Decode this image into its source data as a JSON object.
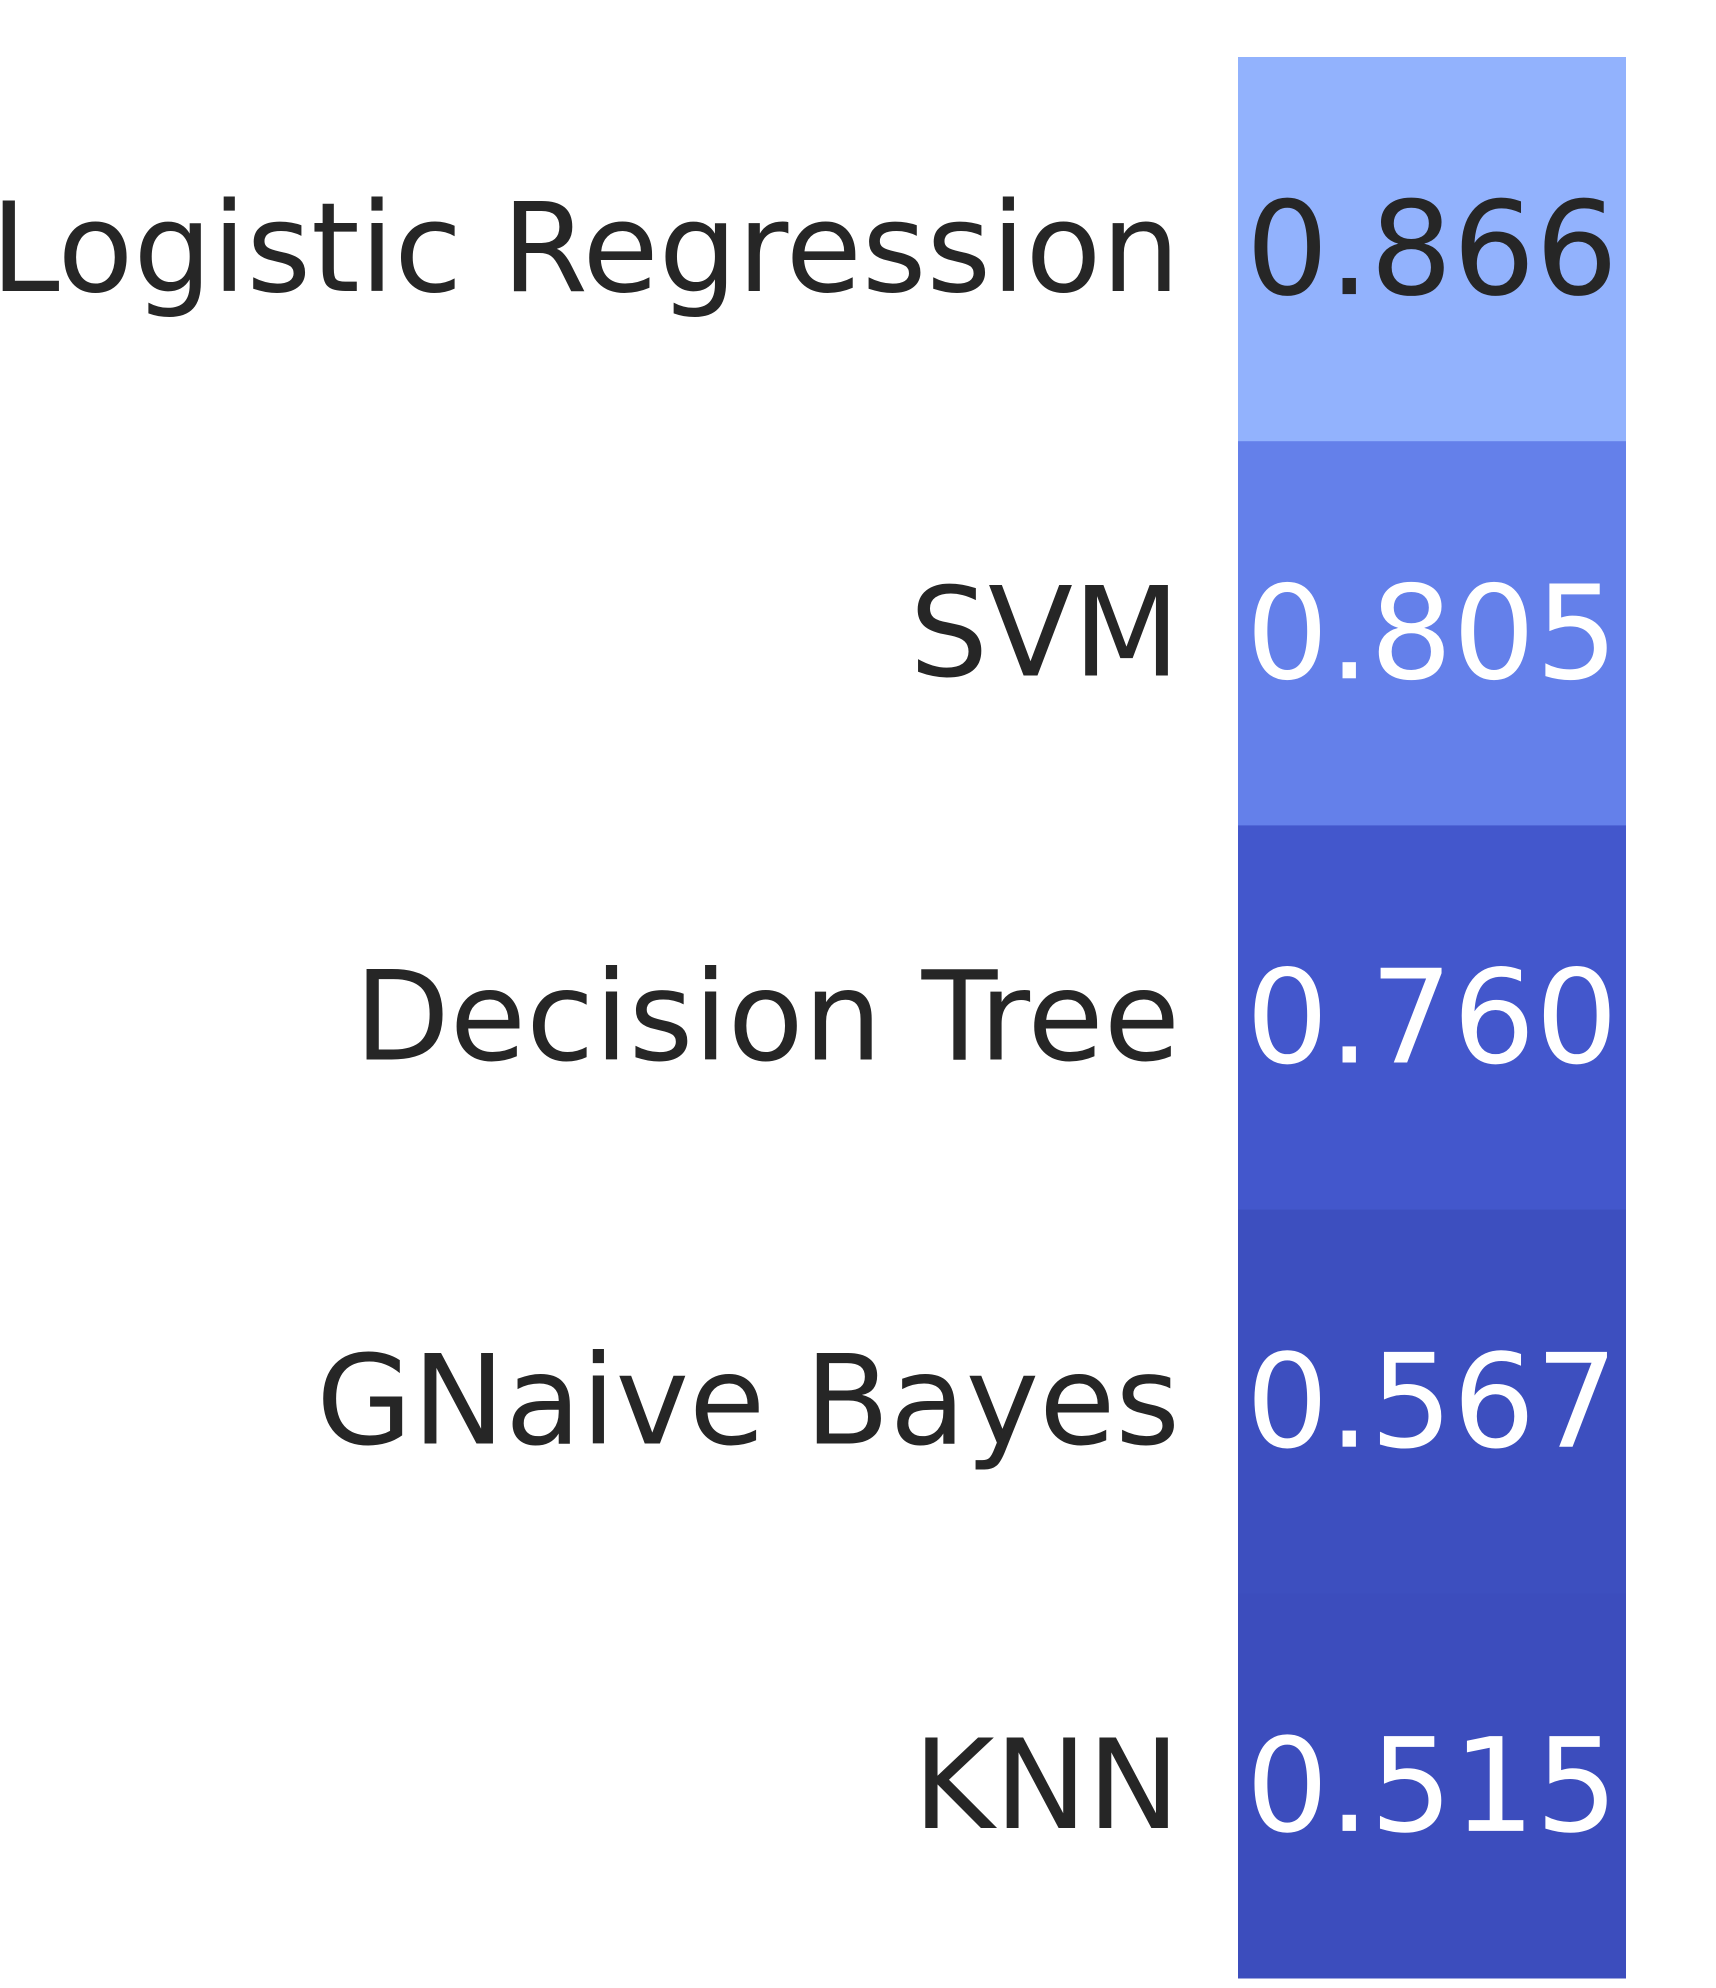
{
  "chart_data": {
    "type": "heatmap",
    "rows": [
      "Logistic Regression",
      "SVM",
      "Decision Tree",
      "GNaive Bayes",
      "KNN"
    ],
    "values": [
      0.866,
      0.805,
      0.76,
      0.567,
      0.515
    ],
    "value_labels": [
      "0.866",
      "0.805",
      "0.760",
      "0.567",
      "0.515"
    ],
    "colormap": "coolwarm",
    "value_range": [
      0.515,
      0.866
    ],
    "cell_colors": [
      "#92b2fd",
      "#6480ea",
      "#4357cc",
      "#3d4fbf",
      "#3c4dbd"
    ],
    "text_colors": [
      "#262626",
      "#ffffff",
      "#ffffff",
      "#ffffff",
      "#ffffff"
    ],
    "label_color": "#262626",
    "grid": false,
    "legend": "none"
  }
}
